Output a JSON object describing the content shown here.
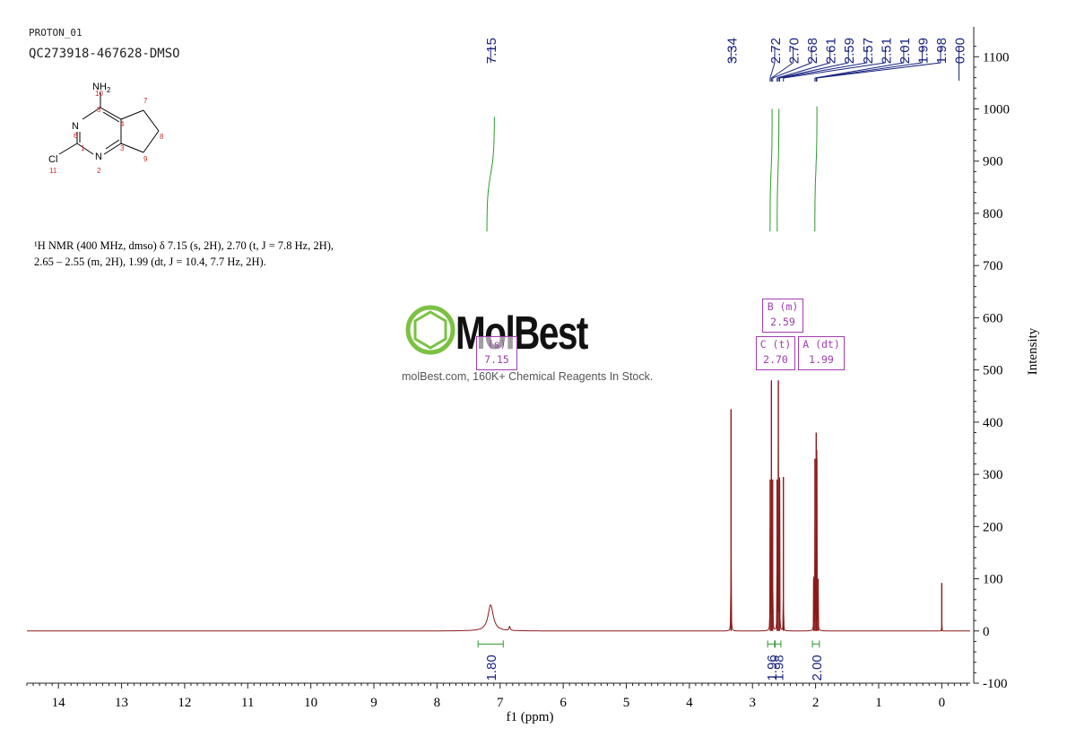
{
  "header": {
    "sample_id": "PROTON_01",
    "sample_code": "QC273918-467628-DMSO"
  },
  "structure": {
    "atoms": {
      "nh2": "NH",
      "nh2_sub": "2",
      "n6": "N",
      "n2": "N",
      "cl": "Cl"
    },
    "numbers": [
      "10",
      "5",
      "4",
      "7",
      "8",
      "6",
      "1",
      "3",
      "9",
      "11",
      "2"
    ],
    "number_color": "#d12a2a"
  },
  "description": {
    "line1": "¹H NMR (400 MHz, dmso) δ 7.15 (s, 2H), 2.70 (t, J = 7.8 Hz, 2H),",
    "line2": "2.65 – 2.55 (m, 2H), 1.99 (dt, J = 10.4, 7.7 Hz, 2H)."
  },
  "watermark": {
    "logo_text": "MolBest",
    "tagline": "molBest.com, 160K+ Chemical Reagents In Stock.",
    "logo_color": "#7bc143"
  },
  "multiplets": [
    {
      "label": "B (m)",
      "shift": "2.59"
    },
    {
      "label": "C (t)",
      "shift": "2.70"
    },
    {
      "label": "A (dt)",
      "shift": "1.99"
    },
    {
      "label": "(s)",
      "shift": "7.15"
    }
  ],
  "colors": {
    "spectrum": "#8b1a1a",
    "peak_labels": "#1a237e",
    "integral": "#2e9a2e",
    "multiplet": "#a03db0",
    "axis": "#222222"
  },
  "chart_data": {
    "type": "line",
    "title": "",
    "xlabel": "f1 (ppm)",
    "ylabel": "Intensity",
    "xlim": [
      14.5,
      -0.45
    ],
    "ylim": [
      -100,
      1140
    ],
    "x_ticks": [
      14,
      13,
      12,
      11,
      10,
      9,
      8,
      7,
      6,
      5,
      4,
      3,
      2,
      1,
      0
    ],
    "y_ticks": [
      1100,
      1000,
      900,
      800,
      700,
      600,
      500,
      400,
      300,
      200,
      100,
      0,
      -100
    ],
    "peak_labels": [
      "7.15",
      "3.34",
      "2.72",
      "2.70",
      "2.68",
      "2.61",
      "2.59",
      "2.57",
      "2.51",
      "2.01",
      "1.99",
      "1.98",
      "0.00"
    ],
    "peaks": [
      {
        "x": 7.15,
        "y": 50,
        "width": 0.1
      },
      {
        "x": 6.85,
        "y": 8,
        "width": 0.02
      },
      {
        "x": 3.34,
        "y": 425,
        "width": 0.004
      },
      {
        "x": 2.72,
        "y": 290,
        "width": 0.004
      },
      {
        "x": 2.7,
        "y": 480,
        "width": 0.004
      },
      {
        "x": 2.68,
        "y": 290,
        "width": 0.004
      },
      {
        "x": 2.61,
        "y": 290,
        "width": 0.004
      },
      {
        "x": 2.59,
        "y": 480,
        "width": 0.004
      },
      {
        "x": 2.57,
        "y": 290,
        "width": 0.004
      },
      {
        "x": 2.51,
        "y": 295,
        "width": 0.003
      },
      {
        "x": 2.03,
        "y": 100,
        "width": 0.004
      },
      {
        "x": 2.01,
        "y": 330,
        "width": 0.004
      },
      {
        "x": 1.99,
        "y": 380,
        "width": 0.004
      },
      {
        "x": 1.98,
        "y": 330,
        "width": 0.004
      },
      {
        "x": 1.96,
        "y": 100,
        "width": 0.004
      },
      {
        "x": 0.0,
        "y": 92,
        "width": 0.002
      }
    ],
    "integrals": [
      {
        "from": 7.35,
        "to": 6.95,
        "value": "1.80",
        "curve_top": 985
      },
      {
        "from": 2.76,
        "to": 2.65,
        "value": "1.96",
        "curve_top": 1000
      },
      {
        "from": 2.64,
        "to": 2.55,
        "value": "1.98",
        "curve_top": 1000
      },
      {
        "from": 2.05,
        "to": 1.94,
        "value": "2.00",
        "curve_top": 1005
      }
    ]
  }
}
